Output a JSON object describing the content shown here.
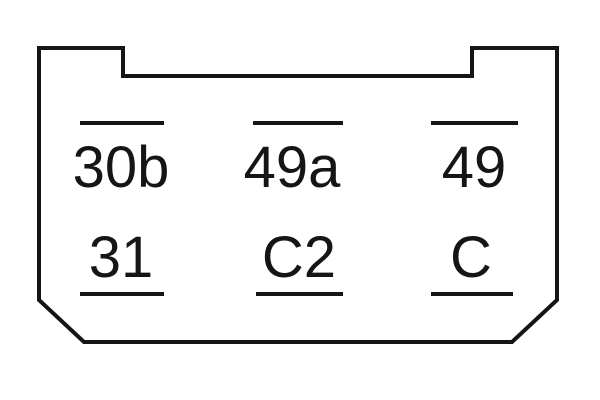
{
  "connector": {
    "top_row": [
      {
        "label": "30b",
        "mark": "overline"
      },
      {
        "label": "49a",
        "mark": "overline"
      },
      {
        "label": "49",
        "mark": "overline"
      }
    ],
    "bottom_row": [
      {
        "label": "31",
        "mark": "underline"
      },
      {
        "label": "C2",
        "mark": "underline"
      },
      {
        "label": "C",
        "mark": "underline"
      }
    ]
  }
}
